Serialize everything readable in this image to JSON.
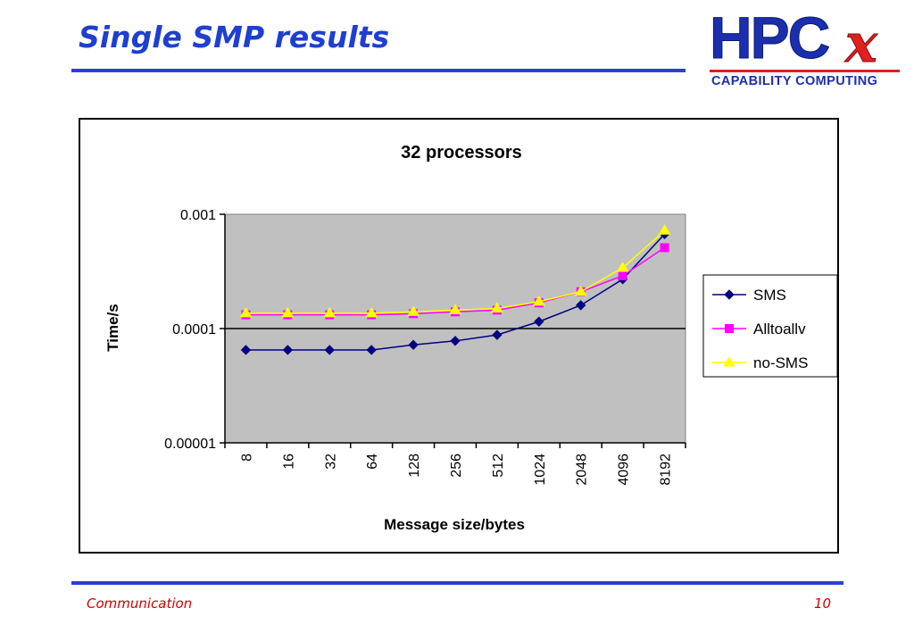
{
  "slide": {
    "title": "Single SMP results",
    "logo_text": "HPC",
    "logo_mark": "x",
    "logo_sub": "CAPABILITY COMPUTING",
    "footer_left": "Communication",
    "footer_right": "10"
  },
  "colors": {
    "title_blue": "#1f3fd1",
    "rule_blue": "#2b3ed6",
    "footer_red": "#d40000",
    "plot_bg": "#c0c0c0"
  },
  "chart_data": {
    "type": "line",
    "title": "32 processors",
    "xlabel": "Message size/bytes",
    "ylabel": "Time/s",
    "categories": [
      "8",
      "16",
      "32",
      "64",
      "128",
      "256",
      "512",
      "1024",
      "2048",
      "4096",
      "8192"
    ],
    "y_scale": "log",
    "ylim": [
      1e-05,
      0.001
    ],
    "y_ticks": [
      "0.001",
      "0.0001",
      "0.00001"
    ],
    "grid": "horizontal major",
    "legend_position": "right",
    "series": [
      {
        "name": "SMS",
        "color": "#000080",
        "marker": "diamond",
        "values": [
          6.5e-05,
          6.5e-05,
          6.5e-05,
          6.5e-05,
          7.2e-05,
          7.8e-05,
          8.8e-05,
          0.000115,
          0.00016,
          0.00027,
          0.00067
        ]
      },
      {
        "name": "Alltoallv",
        "color": "#ff00ff",
        "marker": "square",
        "values": [
          0.000132,
          0.000132,
          0.000132,
          0.000132,
          0.000135,
          0.00014,
          0.000145,
          0.000168,
          0.00021,
          0.00029,
          0.00051
        ]
      },
      {
        "name": "no-SMS",
        "color": "#ffff00",
        "marker": "triangle",
        "values": [
          0.000136,
          0.000136,
          0.000136,
          0.000136,
          0.00014,
          0.000145,
          0.00015,
          0.000172,
          0.00021,
          0.00034,
          0.00072
        ]
      }
    ]
  }
}
